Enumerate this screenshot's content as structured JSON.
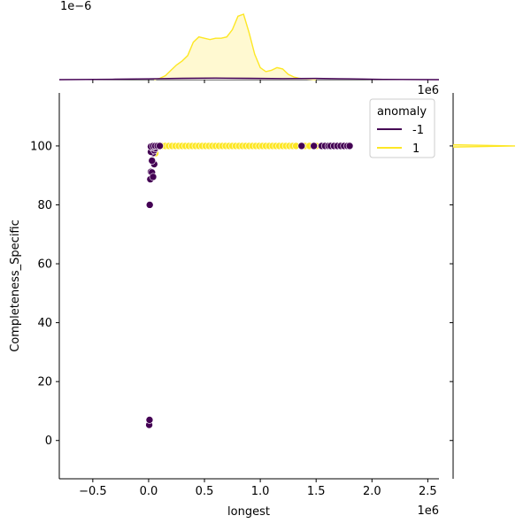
{
  "chart_data": {
    "type": "scatter",
    "title": "",
    "xlabel": "longest",
    "ylabel": "Completeness_Specific",
    "x_offset_label": "1e6",
    "top_offset_label": "1e−6",
    "top_right_offset_label": "1e6",
    "xlim": [
      -0.8,
      2.6
    ],
    "ylim": [
      -13,
      118
    ],
    "x_ticks": [
      -0.5,
      0.0,
      0.5,
      1.0,
      1.5,
      2.0,
      2.5
    ],
    "x_tick_labels": [
      "−0.5",
      "0.0",
      "0.5",
      "1.0",
      "1.5",
      "2.0",
      "2.5"
    ],
    "y_ticks": [
      0,
      20,
      40,
      60,
      80,
      100
    ],
    "y_tick_labels": [
      "0",
      "20",
      "40",
      "60",
      "80",
      "100"
    ],
    "grid": false,
    "legend": {
      "title": "anomaly",
      "placement": "top-right",
      "entries": [
        {
          "label": "-1",
          "color": "#440154"
        },
        {
          "label": "1",
          "color": "#fde725"
        }
      ]
    },
    "series": [
      {
        "name": "-1",
        "color": "#440154",
        "x": [
          0.005,
          0.008,
          0.01,
          0.015,
          0.02,
          0.03,
          0.04,
          0.05,
          0.03,
          0.04,
          0.02,
          0.05,
          0.06,
          0.03,
          0.02,
          0.04,
          0.06,
          0.08,
          0.1,
          1.37,
          1.48,
          1.55,
          1.58,
          1.61,
          1.63,
          1.66,
          1.69,
          1.72,
          1.75,
          1.78,
          1.8
        ],
        "y": [
          5.3,
          7.0,
          80.0,
          88.7,
          91.2,
          91.0,
          89.5,
          93.8,
          95.0,
          97.6,
          98.0,
          98.5,
          99.2,
          99.5,
          99.8,
          100.0,
          100.0,
          100.0,
          100.0,
          100.0,
          100.0,
          100.0,
          100.0,
          100.0,
          100.0,
          100.0,
          100.0,
          100.0,
          100.0,
          100.0,
          100.0
        ]
      },
      {
        "name": "1",
        "color": "#fde725",
        "x": [
          0.06,
          0.09,
          0.12,
          0.15,
          0.18,
          0.21,
          0.24,
          0.27,
          0.3,
          0.33,
          0.36,
          0.39,
          0.42,
          0.45,
          0.48,
          0.51,
          0.54,
          0.57,
          0.6,
          0.63,
          0.66,
          0.69,
          0.72,
          0.75,
          0.78,
          0.81,
          0.84,
          0.87,
          0.9,
          0.93,
          0.96,
          0.99,
          1.02,
          1.05,
          1.08,
          1.11,
          1.14,
          1.17,
          1.2,
          1.23,
          1.26,
          1.29,
          1.32,
          1.4,
          1.44,
          1.5
        ],
        "y": [
          97.5,
          100,
          100,
          100,
          100,
          100,
          100,
          100,
          100,
          100,
          100,
          100,
          100,
          100,
          100,
          100,
          100,
          100,
          100,
          100,
          100,
          100,
          100,
          100,
          100,
          100,
          100,
          100,
          100,
          100,
          100,
          100,
          100,
          100,
          100,
          100,
          100,
          100,
          100,
          100,
          100,
          100,
          100,
          100,
          100,
          100
        ]
      }
    ],
    "marginal_x_density": {
      "series": [
        {
          "name": "1",
          "color": "#fde725",
          "fill": "#fff7c2",
          "x": [
            0.05,
            0.1,
            0.15,
            0.2,
            0.25,
            0.3,
            0.35,
            0.4,
            0.45,
            0.5,
            0.55,
            0.6,
            0.65,
            0.7,
            0.75,
            0.8,
            0.85,
            0.9,
            0.95,
            1.0,
            1.05,
            1.1,
            1.15,
            1.2,
            1.25,
            1.3,
            1.35,
            1.4,
            1.45,
            1.5
          ],
          "y": [
            0.0,
            0.02,
            0.06,
            0.14,
            0.22,
            0.28,
            0.36,
            0.56,
            0.64,
            0.62,
            0.6,
            0.62,
            0.62,
            0.64,
            0.75,
            0.95,
            0.98,
            0.7,
            0.38,
            0.18,
            0.12,
            0.14,
            0.18,
            0.16,
            0.08,
            0.04,
            0.02,
            0.01,
            0.005,
            0.0
          ]
        },
        {
          "name": "-1",
          "color": "#440154",
          "fill": "#ddd0e8",
          "x": [
            -0.8,
            -0.3,
            0.0,
            0.3,
            0.6,
            0.9,
            1.2,
            1.5,
            1.8,
            2.1,
            2.6
          ],
          "y": [
            0.0,
            0.006,
            0.012,
            0.02,
            0.024,
            0.02,
            0.016,
            0.018,
            0.012,
            0.004,
            0.0
          ]
        }
      ]
    },
    "marginal_y_density": {
      "series": [
        {
          "name": "1",
          "color": "#fde725",
          "y": [
            99.6,
            100.0,
            100.4
          ],
          "x": [
            0.0,
            1.0,
            0.0
          ]
        }
      ]
    }
  }
}
